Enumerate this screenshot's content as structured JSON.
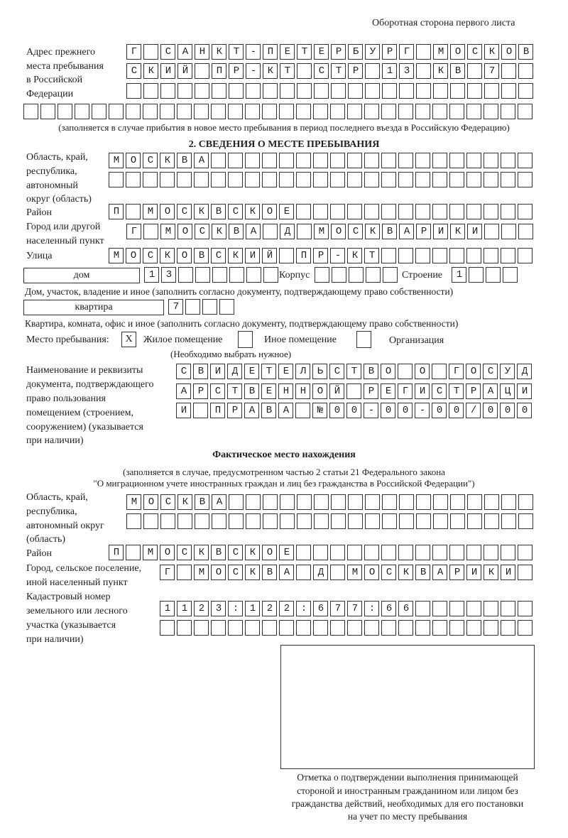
{
  "header": {
    "page_note": "Оборотная сторона первого листа"
  },
  "previous_address": {
    "label": "Адрес прежнего места пребывания в Российской Федерации",
    "label_lines": [
      "Адрес прежнего",
      "места пребывания",
      "в Российской",
      "Федерации"
    ],
    "rows": [
      "Г САНКТ-ПЕТЕРБУРГ МОСКОВ",
      "СКИЙ ПР-КТ СТР 13 КВ 7",
      "",
      ""
    ],
    "note": "(заполняется в случае прибытия в новое место пребывания в период последнего въезда в Российскую Федерацию)"
  },
  "stay_place": {
    "title": "2. СВЕДЕНИЯ О МЕСТЕ ПРЕБЫВАНИЯ",
    "region_label_lines": [
      "Область, край,",
      "республика,",
      "автономный",
      "округ (область)"
    ],
    "region_rows": [
      "МОСКВА",
      ""
    ],
    "district_label": "Район",
    "district": "П МОСКВСКОЕ",
    "city_label_lines": [
      "Город или другой",
      "населенный пункт"
    ],
    "city": "Г МОСКВА Д МОСКВАРИКИ",
    "street_label": "Улица",
    "street": "МОСКОВСКИЙ ПР-КТ",
    "house_type": "дом",
    "house_number": "13",
    "korpus_label": "Корпус",
    "korpus": "",
    "building_label": "Строение",
    "building": "1",
    "house_note": "Дом, участок, владение и иное (заполнить согласно документу, подтверждающему право собственности)",
    "flat_type": "квартира",
    "flat_number": "7",
    "flat_note": "Квартира, комната, офис и иное (заполнить согласно документу, подтверждающему право собственности)",
    "place_label": "Место пребывания:",
    "options": [
      {
        "label": "Жилое помещение",
        "mark": "X",
        "checked": true
      },
      {
        "label": "Иное помещение",
        "mark": "",
        "checked": false
      },
      {
        "label": "Организация",
        "mark": "",
        "checked": false
      }
    ],
    "choose_note": "(Необходимо выбрать нужное)",
    "document_label_lines": [
      "Наименование и реквизиты",
      "документа, подтверждающего",
      "право пользования",
      "помещением (строением,",
      "сооружением) (указывается",
      "при наличии)"
    ],
    "document_rows": [
      "СВИДЕТЕЛЬСТВО О ГОСУД",
      "АРСТВЕННОЙ РЕГИСТРАЦИ",
      "И ПРАВА №00-00-00/000"
    ]
  },
  "actual_place": {
    "title": "Фактическое место нахождения",
    "note_lines": [
      "(заполняется в случае, предусмотренном частью 2 статьи 21 Федерального закона",
      "\"О миграционном учете иностранных граждан и лиц без гражданства в Российской Федерации\")"
    ],
    "region_label_lines": [
      "Область, край,",
      "республика,",
      "автономный округ",
      "(область)"
    ],
    "region_rows": [
      "МОСКВА",
      ""
    ],
    "district_label": "Район",
    "district": "П МОСКВСКОЕ",
    "city_label_lines": [
      "Город, сельское поселение,",
      "иной населенный пункт"
    ],
    "city": "Г МОСКВА Д МОСКВАРИКИ",
    "cadastral_label_lines": [
      "Кадастровый номер",
      "земельного или лесного",
      "участка (указывается",
      "при наличии)"
    ],
    "cadastral_rows": [
      "1123:122:677:66",
      ""
    ]
  },
  "confirmation": {
    "caption_lines": [
      "Отметка о подтверждении выполнения принимающей",
      "стороной и иностранным гражданином или лицом без",
      "гражданства действий, необходимых для его постановки",
      "на учет по месту пребывания"
    ]
  }
}
